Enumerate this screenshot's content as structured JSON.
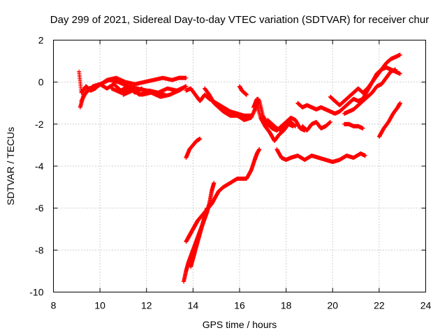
{
  "chart_data": {
    "type": "scatter",
    "title": "Day 299 of 2021, Sidereal Day-to-day VTEC variation (SDTVAR) for receiver chur",
    "xlabel": "GPS time / hours",
    "ylabel": "SDTVAR / TECUs",
    "xlim": [
      8,
      24
    ],
    "ylim": [
      -10,
      2
    ],
    "xticks": [
      8,
      10,
      12,
      14,
      16,
      18,
      20,
      22,
      24
    ],
    "yticks": [
      -10,
      -8,
      -6,
      -4,
      -2,
      0,
      2
    ],
    "grid": true,
    "marker": "plus",
    "color": "#ff0000",
    "series": [
      {
        "name": "arc1",
        "x": [
          9.1,
          9.2,
          9.4,
          9.6,
          9.8,
          10.0,
          10.3,
          10.6,
          10.9,
          11.2,
          11.5,
          11.8
        ],
        "y": [
          0.5,
          -0.5,
          -0.2,
          -0.4,
          -0.3,
          -0.1,
          -0.3,
          -0.1,
          -0.4,
          -0.2,
          -0.5,
          -0.3
        ]
      },
      {
        "name": "arc2",
        "x": [
          9.15,
          9.3,
          9.5,
          9.7,
          10.0,
          10.4,
          10.8,
          11.2,
          11.6,
          12.0,
          12.4,
          12.8
        ],
        "y": [
          -1.2,
          -0.6,
          -0.4,
          -0.2,
          -0.1,
          0.1,
          0.0,
          -0.2,
          -0.3,
          -0.4,
          -0.5,
          -0.6
        ]
      },
      {
        "name": "arc3",
        "x": [
          9.2,
          9.5,
          9.9,
          10.3,
          10.7,
          11.1,
          11.5,
          11.9,
          12.3,
          12.7,
          13.1,
          13.4,
          13.7
        ],
        "y": [
          -0.9,
          -0.3,
          -0.2,
          0.1,
          0.2,
          0.0,
          -0.1,
          0.0,
          0.1,
          0.2,
          0.1,
          0.2,
          0.2
        ]
      },
      {
        "name": "arc4",
        "x": [
          10.5,
          10.9,
          11.3,
          11.7,
          12.1,
          12.5,
          12.9,
          13.3,
          13.7
        ],
        "y": [
          -0.3,
          -0.5,
          -0.3,
          -0.6,
          -0.4,
          -0.5,
          -0.3,
          -0.4,
          -0.2
        ]
      },
      {
        "name": "arc5",
        "x": [
          11.0,
          11.4,
          11.8,
          12.2,
          12.6,
          13.0,
          13.4,
          13.7
        ],
        "y": [
          -0.6,
          -0.4,
          -0.6,
          -0.5,
          -0.7,
          -0.6,
          -0.4,
          -0.2
        ]
      },
      {
        "name": "arc6",
        "x": [
          13.7,
          13.85,
          14.0,
          14.15,
          14.3
        ],
        "y": [
          -3.6,
          -3.2,
          -3.0,
          -2.8,
          -2.7
        ]
      },
      {
        "name": "arc7",
        "x": [
          13.7,
          13.8,
          13.9,
          14.0,
          14.1,
          14.2,
          14.35,
          14.5,
          14.65,
          14.8,
          14.9
        ],
        "y": [
          -7.6,
          -7.4,
          -7.2,
          -7.0,
          -6.8,
          -6.6,
          -6.4,
          -6.2,
          -6.0,
          -5.8,
          -5.6
        ]
      },
      {
        "name": "arc8",
        "x": [
          13.6,
          13.7,
          13.8,
          13.9,
          14.0,
          14.1,
          14.2,
          14.3,
          14.4,
          14.5,
          14.6,
          14.7,
          14.8,
          14.9
        ],
        "y": [
          -9.5,
          -9.0,
          -8.6,
          -8.3,
          -8.0,
          -7.7,
          -7.4,
          -7.1,
          -6.8,
          -6.5,
          -6.2,
          -5.8,
          -5.2,
          -4.8
        ]
      },
      {
        "name": "arc9",
        "x": [
          13.9,
          14.0,
          14.1,
          14.2,
          14.3,
          14.4,
          14.5,
          14.6
        ],
        "y": [
          -8.8,
          -8.4,
          -8.0,
          -7.6,
          -7.2,
          -6.8,
          -6.4,
          -6.0
        ]
      },
      {
        "name": "arc10",
        "x": [
          14.9,
          15.1,
          15.3,
          15.6,
          15.9,
          16.1,
          16.3,
          16.5,
          16.65,
          16.75,
          16.85
        ],
        "y": [
          -5.6,
          -5.2,
          -5.0,
          -4.8,
          -4.6,
          -4.6,
          -4.6,
          -4.2,
          -3.7,
          -3.4,
          -3.2
        ]
      },
      {
        "name": "arc11",
        "x": [
          13.7,
          13.9,
          14.1,
          14.3,
          14.5,
          14.7,
          15.0,
          15.3,
          15.6,
          15.9,
          16.2,
          16.5
        ],
        "y": [
          -0.4,
          -0.3,
          -0.6,
          -0.9,
          -0.6,
          -0.8,
          -1.0,
          -1.2,
          -1.4,
          -1.5,
          -1.6,
          -1.6
        ]
      },
      {
        "name": "arc12",
        "x": [
          14.5,
          14.7,
          14.9,
          15.1,
          15.3,
          15.6,
          15.9,
          16.2,
          16.5,
          16.7,
          16.8
        ],
        "y": [
          -0.3,
          -0.6,
          -1.0,
          -1.2,
          -1.4,
          -1.6,
          -1.6,
          -1.8,
          -1.7,
          -1.2,
          -0.8
        ]
      },
      {
        "name": "arc13",
        "x": [
          16.0,
          16.1,
          16.2,
          16.3
        ],
        "y": [
          -0.2,
          -0.4,
          -0.5,
          -0.6
        ]
      },
      {
        "name": "arc14",
        "x": [
          16.6,
          16.75,
          16.85,
          17.0,
          17.2,
          17.4,
          17.6,
          17.8,
          18.0,
          18.2,
          18.4,
          18.6,
          18.8
        ],
        "y": [
          -1.2,
          -0.8,
          -0.9,
          -1.6,
          -2.0,
          -2.2,
          -2.3,
          -2.1,
          -1.9,
          -1.7,
          -1.8,
          -2.2,
          -2.3
        ]
      },
      {
        "name": "arc15",
        "x": [
          16.7,
          16.9,
          17.1,
          17.3,
          17.5,
          17.7,
          17.9,
          18.1,
          18.3
        ],
        "y": [
          -0.9,
          -1.7,
          -2.1,
          -2.4,
          -2.8,
          -2.5,
          -2.3,
          -2.0,
          -2.1
        ]
      },
      {
        "name": "arc16",
        "x": [
          17.2,
          17.4,
          17.6,
          17.8,
          18.0,
          18.2,
          18.4
        ],
        "y": [
          -1.8,
          -2.0,
          -2.2,
          -2.3,
          -2.0,
          -1.9,
          -2.1
        ]
      },
      {
        "name": "arc17",
        "x": [
          17.6,
          17.8,
          18.0,
          18.2,
          18.5,
          18.8,
          19.1,
          19.4,
          19.7,
          20.0,
          20.3,
          20.6,
          20.9,
          21.2,
          21.4
        ],
        "y": [
          -3.2,
          -3.6,
          -3.7,
          -3.6,
          -3.5,
          -3.7,
          -3.5,
          -3.6,
          -3.7,
          -3.8,
          -3.7,
          -3.5,
          -3.6,
          -3.4,
          -3.5
        ]
      },
      {
        "name": "arc18",
        "x": [
          18.5,
          18.7,
          18.9,
          19.1,
          19.3,
          19.5,
          19.7,
          19.9,
          20.1,
          20.3,
          20.5,
          20.7,
          20.9,
          21.1,
          21.3,
          21.5,
          21.7,
          21.9,
          22.1,
          22.3,
          22.5,
          22.7,
          22.9
        ],
        "y": [
          -1.0,
          -1.2,
          -1.1,
          -1.2,
          -1.3,
          -1.2,
          -1.3,
          -1.4,
          -1.5,
          -1.4,
          -1.2,
          -1.0,
          -0.8,
          -0.9,
          -0.8,
          -0.4,
          0.0,
          0.4,
          0.6,
          0.7,
          0.6,
          0.5,
          0.4
        ]
      },
      {
        "name": "arc19",
        "x": [
          18.7,
          18.9,
          19.1,
          19.3,
          19.5,
          19.7,
          19.9
        ],
        "y": [
          -2.1,
          -2.3,
          -2.0,
          -1.9,
          -2.2,
          -2.1,
          -1.9
        ]
      },
      {
        "name": "arc20",
        "x": [
          19.9,
          20.1,
          20.3,
          20.5,
          20.7,
          20.9,
          21.1,
          21.3,
          21.5,
          21.7,
          21.9,
          22.1,
          22.3,
          22.5,
          22.7,
          22.9
        ],
        "y": [
          -0.7,
          -0.9,
          -1.1,
          -0.9,
          -0.7,
          -0.5,
          -0.3,
          -0.5,
          -0.3,
          0.0,
          0.3,
          0.6,
          0.9,
          1.1,
          1.2,
          1.3
        ]
      },
      {
        "name": "arc21",
        "x": [
          20.5,
          20.7,
          20.9,
          21.1,
          21.3,
          21.5,
          21.7,
          21.9,
          22.1,
          22.3,
          22.5,
          22.7
        ],
        "y": [
          -1.5,
          -1.4,
          -1.3,
          -1.1,
          -0.9,
          -0.7,
          -0.5,
          -0.2,
          -0.1,
          0.2,
          0.5,
          0.6
        ]
      },
      {
        "name": "arc22",
        "x": [
          20.5,
          20.7,
          20.9,
          21.1,
          21.3
        ],
        "y": [
          -2.0,
          -2.0,
          -2.1,
          -2.1,
          -2.2
        ]
      },
      {
        "name": "arc23",
        "x": [
          22.0,
          22.2,
          22.4,
          22.6,
          22.8,
          22.9
        ],
        "y": [
          -2.6,
          -2.2,
          -1.9,
          -1.5,
          -1.2,
          -1.0
        ]
      }
    ]
  }
}
